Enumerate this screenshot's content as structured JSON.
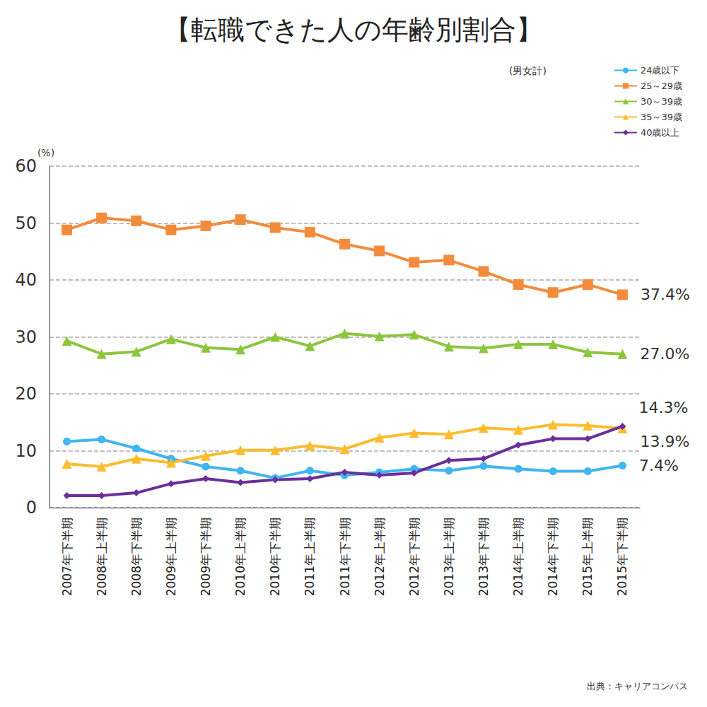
{
  "chart_data": {
    "type": "line",
    "title": "【転職できた人の年齢別割合】",
    "subtitle": "(男女計)",
    "source": "出典：キャリアコンパス",
    "y_label": "(%)",
    "categories": [
      "2007年下半期",
      "2008年上半期",
      "2008年下半期",
      "2009年上半期",
      "2009年下半期",
      "2010年上半期",
      "2010年下半期",
      "2011年上半期",
      "2011年下半期",
      "2012年上半期",
      "2012年下半期",
      "2013年上半期",
      "2013年下半期",
      "2014年上半期",
      "2014年下半期",
      "2015年上半期",
      "2015年下半期"
    ],
    "series": [
      {
        "name": "24歳以下",
        "color": "#3fb6f0",
        "marker": "circle",
        "values": [
          11.6,
          12.0,
          10.4,
          8.6,
          7.2,
          6.5,
          5.2,
          6.5,
          5.7,
          6.2,
          6.8,
          6.5,
          7.3,
          6.8,
          6.4,
          6.4,
          7.4
        ],
        "value_labels": [
          null,
          null,
          null,
          null,
          null,
          null,
          null,
          null,
          null,
          null,
          null,
          null,
          null,
          null,
          null,
          null,
          "7.4%"
        ]
      },
      {
        "name": "25～29歳",
        "color": "#f28c3c",
        "marker": "square",
        "values": [
          48.8,
          50.9,
          50.4,
          48.8,
          49.5,
          50.6,
          49.2,
          48.4,
          46.3,
          45.1,
          43.1,
          43.5,
          41.5,
          39.2,
          37.8,
          39.2,
          37.4
        ],
        "value_labels": [
          null,
          null,
          null,
          null,
          null,
          null,
          null,
          null,
          null,
          null,
          null,
          null,
          null,
          null,
          null,
          null,
          "37.4%"
        ]
      },
      {
        "name": "30～39歳",
        "color": "#8cc63f",
        "marker": "triangle",
        "values": [
          29.3,
          27.0,
          27.4,
          29.6,
          28.1,
          27.8,
          30.0,
          28.4,
          30.6,
          30.1,
          30.4,
          28.3,
          28.0,
          28.7,
          28.7,
          27.3,
          27.0
        ],
        "value_labels": [
          null,
          null,
          null,
          null,
          null,
          null,
          null,
          null,
          null,
          null,
          null,
          null,
          null,
          null,
          null,
          null,
          "27.0%"
        ]
      },
      {
        "name": "35～39歳",
        "color": "#fbbd2f",
        "marker": "triangle",
        "values": [
          7.7,
          7.2,
          8.6,
          7.9,
          9.1,
          10.1,
          10.1,
          10.9,
          10.3,
          12.3,
          13.1,
          12.9,
          14.0,
          13.7,
          14.6,
          14.4,
          13.9
        ],
        "value_labels": [
          null,
          null,
          null,
          null,
          null,
          null,
          null,
          null,
          null,
          null,
          null,
          null,
          null,
          null,
          null,
          null,
          "13.9%"
        ]
      },
      {
        "name": "40歳以上",
        "color": "#6a2f9c",
        "marker": "diamond",
        "values": [
          2.1,
          2.1,
          2.6,
          4.2,
          5.1,
          4.4,
          4.9,
          5.1,
          6.2,
          5.7,
          6.1,
          8.3,
          8.6,
          11.0,
          12.1,
          12.1,
          14.3
        ],
        "value_labels": [
          null,
          null,
          null,
          null,
          null,
          null,
          null,
          null,
          null,
          null,
          null,
          null,
          null,
          null,
          null,
          null,
          "14.3%"
        ]
      }
    ],
    "ylim": [
      0,
      60
    ],
    "yticks": [
      0,
      10,
      20,
      30,
      40,
      50,
      60
    ],
    "grid": true,
    "legend": "top-right"
  }
}
